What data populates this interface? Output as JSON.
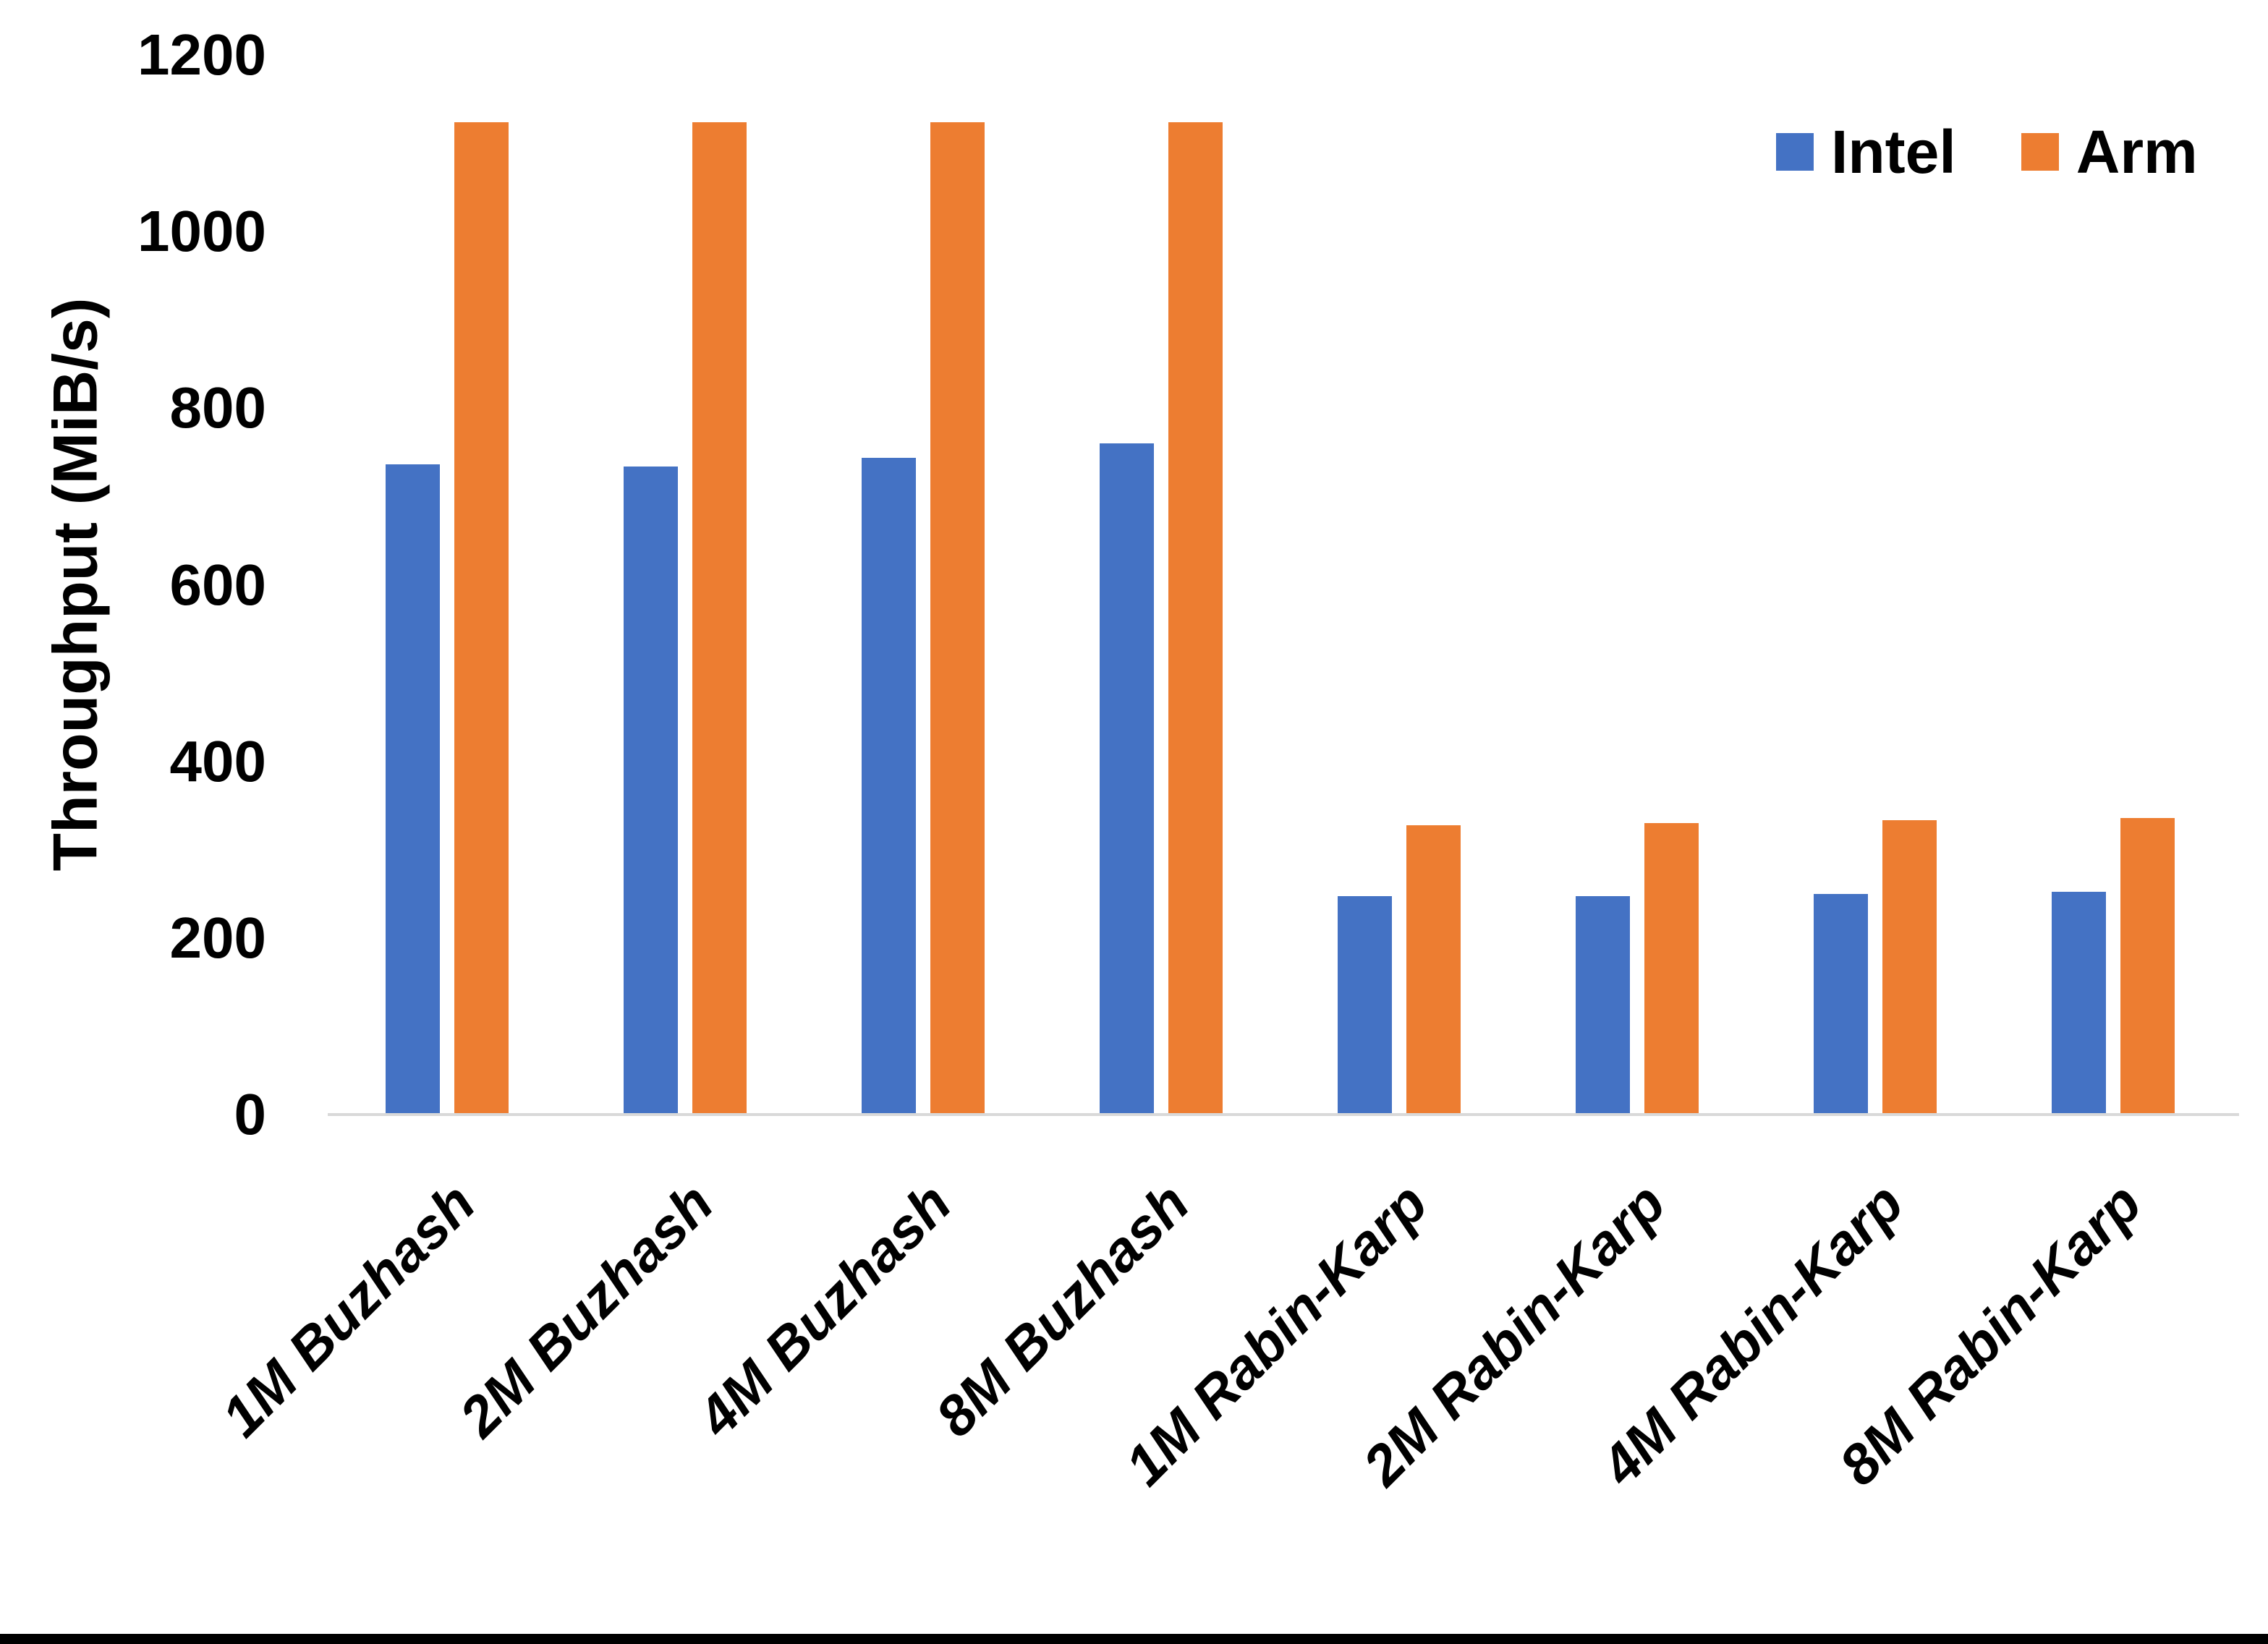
{
  "chart_data": {
    "type": "bar",
    "title": "",
    "ylabel": "Throughput (MiB/s)",
    "xlabel": "",
    "ylim": [
      0,
      1200
    ],
    "yticks": [
      0,
      200,
      400,
      600,
      800,
      1000,
      1200
    ],
    "grid": false,
    "legend_position": "top-right",
    "categories": [
      "1M Buzhash",
      "2M Buzhash",
      "4M Buzhash",
      "8M Buzhash",
      "1M Rabin-Karp",
      "2M Rabin-Karp",
      "4M Rabin-Karp",
      "8M Rabin-Karp"
    ],
    "series": [
      {
        "name": "Intel",
        "color": "#4472C4",
        "values": [
          736,
          734,
          744,
          760,
          247,
          247,
          250,
          252
        ]
      },
      {
        "name": "Arm",
        "color": "#ED7D31",
        "values": [
          1124,
          1124,
          1124,
          1124,
          328,
          330,
          333,
          336
        ]
      }
    ]
  },
  "colors": {
    "background": "#FFFFFF",
    "axis_line": "#D9D9D9",
    "text": "#000000",
    "bottom_rule": "#000000"
  }
}
